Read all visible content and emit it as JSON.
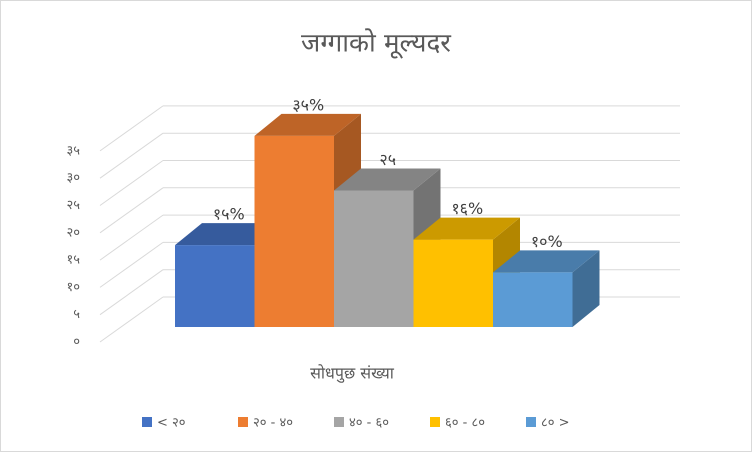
{
  "chart_data": {
    "type": "bar3d",
    "title": "जग्गाको मूल्यदर",
    "x_label": "सोधपुछ संख्या",
    "series": [
      {
        "name": "< २०",
        "color": "#4472c4",
        "values": [
          15
        ],
        "value_labels": [
          "१५%"
        ]
      },
      {
        "name": "२० - ४०",
        "color": "#ed7d31",
        "values": [
          35
        ],
        "value_labels": [
          "३५%"
        ]
      },
      {
        "name": "४० - ६०",
        "color": "#a5a5a5",
        "values": [
          25
        ],
        "value_labels": [
          "२५"
        ]
      },
      {
        "name": "६० - ८०",
        "color": "#ffc000",
        "values": [
          16
        ],
        "value_labels": [
          "१६%"
        ]
      },
      {
        "name": "८० >",
        "color": "#5b9bd5",
        "values": [
          10
        ],
        "value_labels": [
          "१०%"
        ]
      }
    ],
    "ylim": [
      0,
      35
    ],
    "yticks": [
      {
        "value": 0,
        "label": "०"
      },
      {
        "value": 5,
        "label": "५"
      },
      {
        "value": 10,
        "label": "१०"
      },
      {
        "value": 15,
        "label": "१५"
      },
      {
        "value": 20,
        "label": "२०"
      },
      {
        "value": 25,
        "label": "२५"
      },
      {
        "value": 30,
        "label": "३०"
      },
      {
        "value": 35,
        "label": "३५"
      }
    ],
    "grid": true,
    "legend": "bottom"
  }
}
